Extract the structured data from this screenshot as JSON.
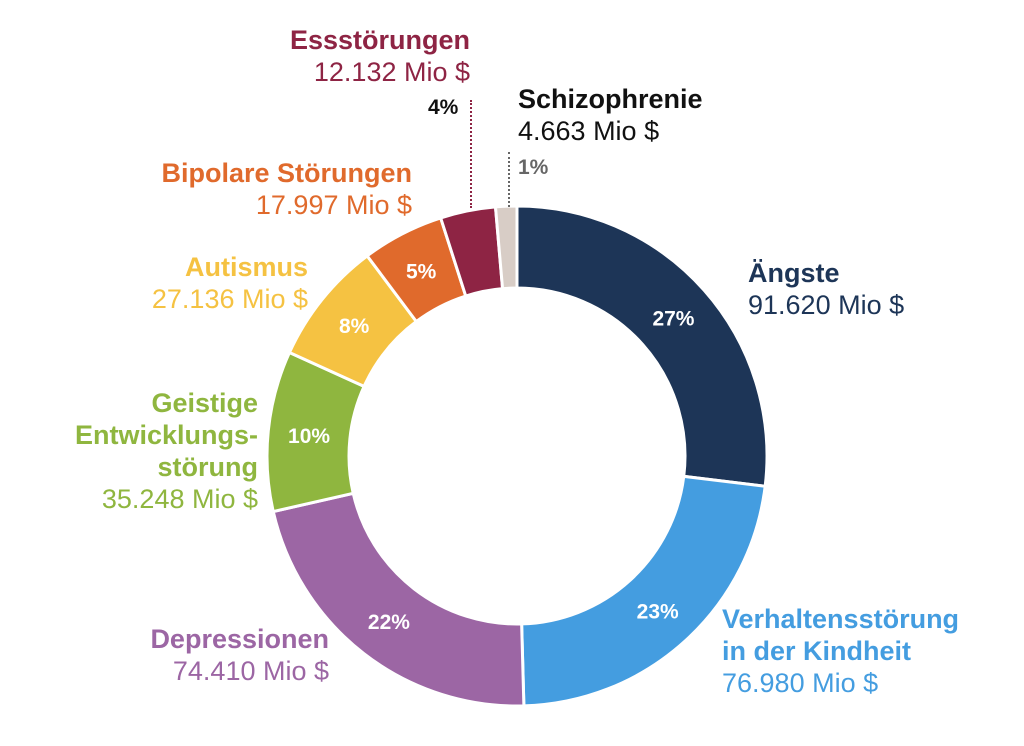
{
  "chart_data": {
    "type": "pie",
    "donut": true,
    "title": "",
    "unit": "Mio $",
    "slices": [
      {
        "label": "Ängste",
        "value_text": "91.620 Mio $",
        "value": 91620,
        "percent": "27%",
        "color": "#1d3557"
      },
      {
        "label": "Verhaltensstörung in der Kindheit",
        "value_text": "76.980 Mio $",
        "value": 76980,
        "percent": "23%",
        "color": "#449de0"
      },
      {
        "label": "Depressionen",
        "value_text": "74.410 Mio $",
        "value": 74410,
        "percent": "22%",
        "color": "#9c66a4"
      },
      {
        "label": "Geistige Entwicklungsstörung",
        "value_text": "35.248 Mio $",
        "value": 35248,
        "percent": "10%",
        "color": "#8fb63f"
      },
      {
        "label": "Autismus",
        "value_text": "27.136 Mio $",
        "value": 27136,
        "percent": "8%",
        "color": "#f5c242"
      },
      {
        "label": "Bipolare Störungen",
        "value_text": "17.997 Mio $",
        "value": 17997,
        "percent": "5%",
        "color": "#e06a2c"
      },
      {
        "label": "Essstörungen",
        "value_text": "12.132 Mio $",
        "value": 12132,
        "percent": "4%",
        "color": "#8e2444"
      },
      {
        "label": "Schizophrenie",
        "value_text": "4.663 Mio $",
        "value": 4663,
        "percent": "1%",
        "color": "#d8cdc6"
      }
    ]
  },
  "labels": {
    "angste_name": "Ängste",
    "verhalten_name_1": "Verhaltensstörung",
    "verhalten_name_2": "in der Kindheit",
    "depression_name": "Depressionen",
    "geistige_name_1": "Geistige",
    "geistige_name_2": "Entwicklungs-",
    "geistige_name_3": "störung",
    "autismus_name": "Autismus",
    "bipolar_name": "Bipolare Störungen",
    "ess_name": "Essstörungen",
    "schizo_name": "Schizophrenie"
  },
  "colors": {
    "schizo_label": "#111111",
    "schizo_pct": "#666666",
    "ess_pct": "#111111"
  }
}
